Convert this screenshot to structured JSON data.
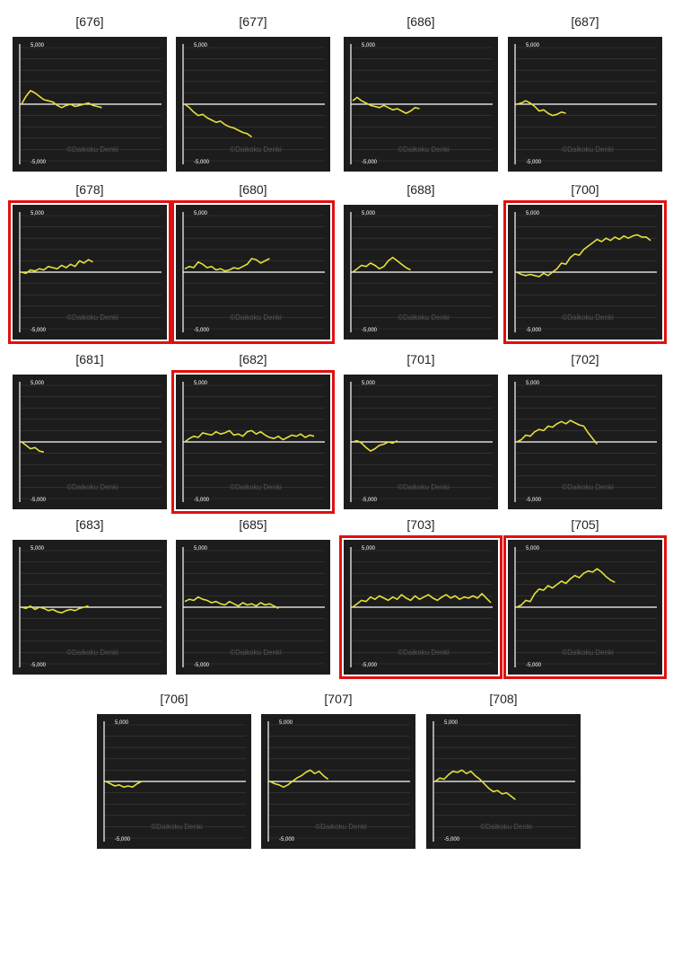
{
  "page": {
    "background": "#ffffff"
  },
  "style": {
    "panel_bg": "#1c1c1c",
    "line_color": "#e6e03a",
    "zero_line_color": "#ffffff",
    "grid_color": "#3c3c3c",
    "axis_color": "#ffffff",
    "highlight_color": "#e01010",
    "watermark_color": "#555555"
  },
  "chart_data": [
    {
      "type": "line",
      "title": "[676]",
      "ylim": [
        -5000,
        5000
      ],
      "tick_labels": [
        "5,000",
        "-5,000"
      ],
      "watermark": "©Daikoku Denki",
      "highlighted": false,
      "series": [
        {
          "values": [
            0,
            700,
            1200,
            1000,
            700,
            400,
            300,
            200,
            -100,
            -300,
            -100,
            0,
            -200,
            -100,
            0,
            100,
            -100,
            -200,
            -300
          ]
        }
      ]
    },
    {
      "type": "line",
      "title": "[677]",
      "ylim": [
        -5000,
        5000
      ],
      "tick_labels": [
        "5,000",
        "-5,000"
      ],
      "watermark": "©Daikoku Denki",
      "highlighted": false,
      "series": [
        {
          "values": [
            0,
            -300,
            -700,
            -1000,
            -900,
            -1200,
            -1400,
            -1600,
            -1500,
            -1800,
            -2000,
            -2100,
            -2300,
            -2500,
            -2600,
            -2900
          ]
        }
      ]
    },
    {
      "type": "line",
      "title": "[686]",
      "ylim": [
        -5000,
        5000
      ],
      "tick_labels": [
        "5,000",
        "-5,000"
      ],
      "watermark": "©Daikoku Denki",
      "highlighted": false,
      "series": [
        {
          "values": [
            300,
            600,
            300,
            100,
            -100,
            -200,
            -300,
            -100,
            -300,
            -500,
            -400,
            -600,
            -800,
            -600,
            -300,
            -400
          ]
        }
      ]
    },
    {
      "type": "line",
      "title": "[687]",
      "ylim": [
        -5000,
        5000
      ],
      "tick_labels": [
        "5,000",
        "-5,000"
      ],
      "watermark": "©Daikoku Denki",
      "highlighted": false,
      "series": [
        {
          "values": [
            0,
            100,
            300,
            100,
            -200,
            -600,
            -500,
            -800,
            -1000,
            -900,
            -700,
            -800
          ]
        }
      ]
    },
    {
      "type": "line",
      "title": "[678]",
      "ylim": [
        -5000,
        5000
      ],
      "tick_labels": [
        "5,000",
        "-5,000"
      ],
      "watermark": "©Daikoku Denki",
      "highlighted": true,
      "series": [
        {
          "values": [
            0,
            -100,
            200,
            100,
            300,
            200,
            500,
            400,
            300,
            600,
            400,
            700,
            500,
            1000,
            800,
            1100,
            900
          ]
        }
      ]
    },
    {
      "type": "line",
      "title": "[680]",
      "ylim": [
        -5000,
        5000
      ],
      "tick_labels": [
        "5,000",
        "-5,000"
      ],
      "watermark": "©Daikoku Denki",
      "highlighted": true,
      "series": [
        {
          "values": [
            300,
            500,
            400,
            900,
            700,
            400,
            500,
            200,
            300,
            100,
            200,
            400,
            300,
            500,
            700,
            1200,
            1100,
            800,
            1000,
            1200
          ]
        }
      ]
    },
    {
      "type": "line",
      "title": "[688]",
      "ylim": [
        -5000,
        5000
      ],
      "tick_labels": [
        "5,000",
        "-5,000"
      ],
      "watermark": "©Daikoku Denki",
      "highlighted": false,
      "series": [
        {
          "values": [
            0,
            300,
            600,
            500,
            800,
            600,
            300,
            500,
            1000,
            1300,
            1000,
            700,
            400,
            200
          ]
        }
      ]
    },
    {
      "type": "line",
      "title": "[700]",
      "ylim": [
        -5000,
        5000
      ],
      "tick_labels": [
        "5,000",
        "-5,000"
      ],
      "watermark": "©Daikoku Denki",
      "highlighted": true,
      "series": [
        {
          "values": [
            0,
            -200,
            -300,
            -200,
            -300,
            -400,
            -100,
            -300,
            0,
            300,
            800,
            700,
            1300,
            1600,
            1500,
            2000,
            2300,
            2600,
            2900,
            2700,
            3000,
            2800,
            3100,
            2900,
            3200,
            3000,
            3200,
            3300,
            3100,
            3100,
            2800
          ]
        }
      ]
    },
    {
      "type": "line",
      "title": "[681]",
      "ylim": [
        -5000,
        5000
      ],
      "tick_labels": [
        "5,000",
        "-5,000"
      ],
      "watermark": "©Daikoku Denki",
      "highlighted": false,
      "series": [
        {
          "values": [
            0,
            -300,
            -600,
            -500,
            -800,
            -900
          ]
        }
      ]
    },
    {
      "type": "line",
      "title": "[682]",
      "ylim": [
        -5000,
        5000
      ],
      "tick_labels": [
        "5,000",
        "-5,000"
      ],
      "watermark": "©Daikoku Denki",
      "highlighted": true,
      "series": [
        {
          "values": [
            0,
            300,
            500,
            400,
            800,
            700,
            600,
            900,
            700,
            800,
            1000,
            600,
            700,
            500,
            900,
            1000,
            700,
            900,
            600,
            400,
            300,
            500,
            200,
            400,
            600,
            500,
            700,
            400,
            600,
            500
          ]
        }
      ]
    },
    {
      "type": "line",
      "title": "[701]",
      "ylim": [
        -5000,
        5000
      ],
      "tick_labels": [
        "5,000",
        "-5,000"
      ],
      "watermark": "©Daikoku Denki",
      "highlighted": false,
      "series": [
        {
          "values": [
            0,
            100,
            -100,
            -500,
            -800,
            -600,
            -300,
            -200,
            0,
            -100,
            100
          ]
        }
      ]
    },
    {
      "type": "line",
      "title": "[702]",
      "ylim": [
        -5000,
        5000
      ],
      "tick_labels": [
        "5,000",
        "-5,000"
      ],
      "watermark": "©Daikoku Denki",
      "highlighted": false,
      "series": [
        {
          "values": [
            0,
            200,
            600,
            500,
            900,
            1100,
            1000,
            1400,
            1300,
            1600,
            1800,
            1600,
            1900,
            1700,
            1500,
            1400,
            800,
            300,
            -200
          ]
        }
      ]
    },
    {
      "type": "line",
      "title": "[683]",
      "ylim": [
        -5000,
        5000
      ],
      "tick_labels": [
        "5,000",
        "-5,000"
      ],
      "watermark": "©Daikoku Denki",
      "highlighted": false,
      "series": [
        {
          "values": [
            0,
            -100,
            100,
            -200,
            0,
            -100,
            -300,
            -200,
            -400,
            -500,
            -300,
            -200,
            -300,
            -100,
            0,
            100
          ]
        }
      ]
    },
    {
      "type": "line",
      "title": "[685]",
      "ylim": [
        -5000,
        5000
      ],
      "tick_labels": [
        "5,000",
        "-5,000"
      ],
      "watermark": "©Daikoku Denki",
      "highlighted": false,
      "series": [
        {
          "values": [
            500,
            700,
            600,
            900,
            700,
            600,
            400,
            500,
            300,
            200,
            500,
            300,
            100,
            400,
            200,
            300,
            100,
            400,
            200,
            300,
            100,
            -100
          ]
        }
      ]
    },
    {
      "type": "line",
      "title": "[703]",
      "ylim": [
        -5000,
        5000
      ],
      "tick_labels": [
        "5,000",
        "-5,000"
      ],
      "watermark": "©Daikoku Denki",
      "highlighted": true,
      "series": [
        {
          "values": [
            0,
            300,
            600,
            500,
            900,
            700,
            1000,
            800,
            600,
            900,
            700,
            1100,
            800,
            600,
            1000,
            700,
            900,
            1100,
            800,
            600,
            900,
            1100,
            800,
            1000,
            700,
            900,
            800,
            1000,
            800,
            1200,
            800,
            400
          ]
        }
      ]
    },
    {
      "type": "line",
      "title": "[705]",
      "ylim": [
        -5000,
        5000
      ],
      "tick_labels": [
        "5,000",
        "-5,000"
      ],
      "watermark": "©Daikoku Denki",
      "highlighted": true,
      "series": [
        {
          "values": [
            0,
            200,
            600,
            500,
            1200,
            1600,
            1500,
            1900,
            1700,
            2000,
            2300,
            2100,
            2500,
            2800,
            2600,
            3000,
            3200,
            3100,
            3400,
            3100,
            2700,
            2400,
            2200
          ]
        }
      ]
    },
    {
      "type": "line",
      "title": "[706]",
      "ylim": [
        -5000,
        5000
      ],
      "tick_labels": [
        "5,000",
        "-5,000"
      ],
      "watermark": "©Daikoku Denki",
      "highlighted": false,
      "series": [
        {
          "values": [
            0,
            -200,
            -400,
            -300,
            -500,
            -400,
            -500,
            -200,
            0
          ]
        }
      ]
    },
    {
      "type": "line",
      "title": "[707]",
      "ylim": [
        -5000,
        5000
      ],
      "tick_labels": [
        "5,000",
        "-5,000"
      ],
      "watermark": "©Daikoku Denki",
      "highlighted": false,
      "series": [
        {
          "values": [
            0,
            -200,
            -300,
            -500,
            -300,
            0,
            300,
            500,
            800,
            1000,
            700,
            900,
            500,
            200
          ]
        }
      ]
    },
    {
      "type": "line",
      "title": "[708]",
      "ylim": [
        -5000,
        5000
      ],
      "tick_labels": [
        "5,000",
        "-5,000"
      ],
      "watermark": "©Daikoku Denki",
      "highlighted": false,
      "series": [
        {
          "values": [
            0,
            300,
            200,
            600,
            900,
            800,
            1000,
            700,
            900,
            500,
            200,
            -200,
            -600,
            -900,
            -800,
            -1100,
            -1000,
            -1300,
            -1600
          ]
        }
      ]
    }
  ]
}
